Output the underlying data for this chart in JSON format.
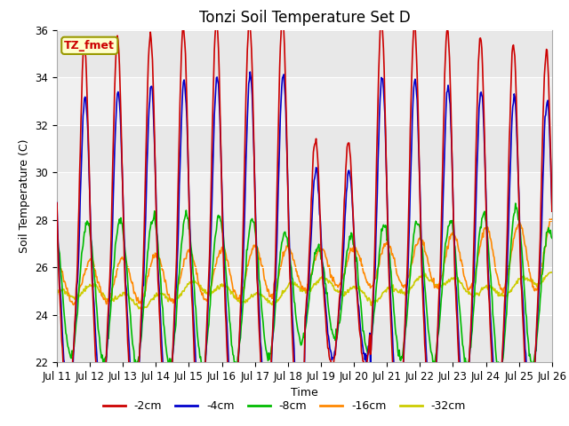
{
  "title": "Tonzi Soil Temperature Set D",
  "xlabel": "Time",
  "ylabel": "Soil Temperature (C)",
  "ylim": [
    22,
    36
  ],
  "yticks": [
    22,
    24,
    26,
    28,
    30,
    32,
    34,
    36
  ],
  "x_tick_labels": [
    "Jul 11",
    "Jul 12",
    "Jul 13",
    "Jul 14",
    "Jul 15",
    "Jul 16",
    "Jul 17",
    "Jul 18",
    "Jul 19",
    "Jul 20",
    "Jul 21",
    "Jul 22",
    "Jul 23",
    "Jul 24",
    "Jul 25",
    "Jul 26"
  ],
  "series_colors": [
    "#cc0000",
    "#0000cc",
    "#00bb00",
    "#ff8800",
    "#cccc00"
  ],
  "series_labels": [
    "-2cm",
    "-4cm",
    "-8cm",
    "-16cm",
    "-32cm"
  ],
  "legend_label": "TZ_fmet",
  "legend_box_facecolor": "#ffffcc",
  "legend_box_edgecolor": "#999900",
  "plot_bg_bands": [
    "#e8e8e8",
    "#f0f0f0"
  ],
  "title_fontsize": 12,
  "axis_label_fontsize": 9,
  "tick_label_fontsize": 8.5
}
